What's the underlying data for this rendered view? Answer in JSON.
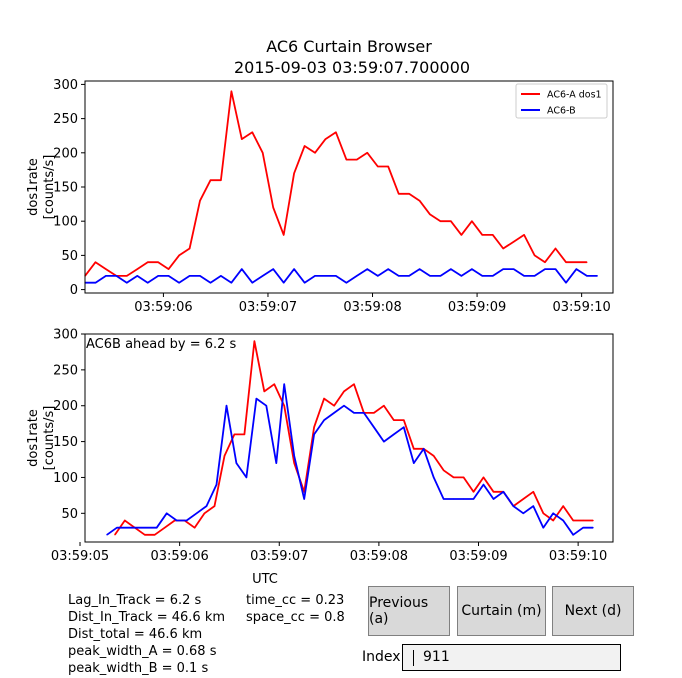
{
  "title": "AC6 Curtain Browser",
  "subtitle": "2015-09-03 03:59:07.700000",
  "colors": {
    "a": "#ff0000",
    "b": "#0000ff"
  },
  "chart_data": [
    {
      "type": "line",
      "ylabel": "dos1rate\n[counts/s]",
      "ylim": [
        -5,
        305
      ],
      "yticks": [
        0,
        50,
        100,
        150,
        200,
        250,
        300
      ],
      "xlim": [
        5.25,
        10.3
      ],
      "xticks": [
        6,
        7,
        8,
        9,
        10
      ],
      "xtick_labels": [
        "03:59:06",
        "03:59:07",
        "03:59:08",
        "03:59:09",
        "03:59:10"
      ],
      "legend": "top-right",
      "series": [
        {
          "name": "AC6-A dos1",
          "color": "#ff0000",
          "x": [
            5.25,
            5.35,
            5.45,
            5.55,
            5.65,
            5.75,
            5.85,
            5.95,
            6.05,
            6.15,
            6.25,
            6.35,
            6.45,
            6.55,
            6.65,
            6.75,
            6.85,
            6.95,
            7.05,
            7.15,
            7.25,
            7.35,
            7.45,
            7.55,
            7.65,
            7.75,
            7.85,
            7.95,
            8.05,
            8.15,
            8.25,
            8.35,
            8.45,
            8.55,
            8.65,
            8.75,
            8.85,
            8.95,
            9.05,
            9.15,
            9.25,
            9.35,
            9.45,
            9.55,
            9.65,
            9.75,
            9.85,
            9.95,
            10.05
          ],
          "y": [
            20,
            40,
            30,
            20,
            20,
            30,
            40,
            40,
            30,
            50,
            60,
            130,
            160,
            160,
            290,
            220,
            230,
            200,
            120,
            80,
            170,
            210,
            200,
            220,
            230,
            190,
            190,
            200,
            180,
            180,
            140,
            140,
            130,
            110,
            100,
            100,
            80,
            100,
            80,
            80,
            60,
            70,
            80,
            50,
            40,
            60,
            40,
            40,
            40
          ]
        },
        {
          "name": "AC6-B",
          "color": "#0000ff",
          "x": [
            5.25,
            5.35,
            5.45,
            5.55,
            5.65,
            5.75,
            5.85,
            5.95,
            6.05,
            6.15,
            6.25,
            6.35,
            6.45,
            6.55,
            6.65,
            6.75,
            6.85,
            6.95,
            7.05,
            7.15,
            7.25,
            7.35,
            7.45,
            7.55,
            7.65,
            7.75,
            7.85,
            7.95,
            8.05,
            8.15,
            8.25,
            8.35,
            8.45,
            8.55,
            8.65,
            8.75,
            8.85,
            8.95,
            9.05,
            9.15,
            9.25,
            9.35,
            9.45,
            9.55,
            9.65,
            9.75,
            9.85,
            9.95,
            10.05,
            10.15
          ],
          "y": [
            10,
            10,
            20,
            20,
            10,
            20,
            10,
            20,
            20,
            10,
            20,
            20,
            10,
            20,
            10,
            30,
            10,
            20,
            30,
            10,
            30,
            10,
            20,
            20,
            20,
            10,
            20,
            30,
            20,
            30,
            20,
            20,
            30,
            20,
            20,
            30,
            20,
            30,
            20,
            20,
            30,
            30,
            20,
            20,
            30,
            30,
            10,
            30,
            20,
            20
          ]
        }
      ]
    },
    {
      "type": "line",
      "ylabel": "dos1rate\n[counts/s]",
      "ylim": [
        10,
        300
      ],
      "yticks": [
        50,
        100,
        150,
        200,
        250,
        300
      ],
      "xlim": [
        5.05,
        10.35
      ],
      "xticks": [
        5,
        6,
        7,
        8,
        9,
        10
      ],
      "xtick_labels": [
        "03:59:05",
        "03:59:06",
        "03:59:07",
        "03:59:08",
        "03:59:09",
        "03:59:10"
      ],
      "xlabel": "UTC",
      "annotation": "AC6B ahead by = 6.2 s",
      "series": [
        {
          "color": "#ff0000",
          "x": [
            5.35,
            5.45,
            5.55,
            5.65,
            5.75,
            5.85,
            5.95,
            6.05,
            6.15,
            6.25,
            6.35,
            6.45,
            6.55,
            6.65,
            6.75,
            6.85,
            6.95,
            7.05,
            7.15,
            7.25,
            7.35,
            7.45,
            7.55,
            7.65,
            7.75,
            7.85,
            7.95,
            8.05,
            8.15,
            8.25,
            8.35,
            8.45,
            8.55,
            8.65,
            8.75,
            8.85,
            8.95,
            9.05,
            9.15,
            9.25,
            9.35,
            9.45,
            9.55,
            9.65,
            9.75,
            9.85,
            9.95,
            10.05,
            10.15
          ],
          "y": [
            20,
            40,
            30,
            20,
            20,
            30,
            40,
            40,
            30,
            50,
            60,
            130,
            160,
            160,
            290,
            220,
            230,
            200,
            120,
            80,
            170,
            210,
            200,
            220,
            230,
            190,
            190,
            200,
            180,
            180,
            140,
            140,
            130,
            110,
            100,
            100,
            80,
            100,
            80,
            80,
            60,
            70,
            80,
            50,
            40,
            60,
            40,
            40,
            40
          ]
        },
        {
          "color": "#0000ff",
          "x": [
            5.27,
            5.37,
            5.47,
            5.57,
            5.67,
            5.77,
            5.87,
            5.97,
            6.07,
            6.17,
            6.27,
            6.37,
            6.47,
            6.57,
            6.67,
            6.77,
            6.87,
            6.97,
            7.05,
            7.15,
            7.25,
            7.35,
            7.45,
            7.55,
            7.65,
            7.75,
            7.85,
            7.95,
            8.05,
            8.15,
            8.25,
            8.35,
            8.45,
            8.55,
            8.65,
            8.75,
            8.85,
            8.95,
            9.05,
            9.15,
            9.25,
            9.35,
            9.45,
            9.55,
            9.65,
            9.75,
            9.85,
            9.95,
            10.05,
            10.15
          ],
          "y": [
            20,
            30,
            30,
            30,
            30,
            30,
            50,
            40,
            40,
            50,
            60,
            90,
            200,
            120,
            100,
            210,
            200,
            120,
            230,
            130,
            70,
            160,
            180,
            190,
            200,
            190,
            190,
            170,
            150,
            160,
            170,
            120,
            140,
            100,
            70,
            70,
            70,
            70,
            90,
            70,
            80,
            60,
            50,
            60,
            30,
            50,
            40,
            20,
            30,
            30
          ]
        }
      ]
    }
  ],
  "stats_left": [
    "Lag_In_Track = 6.2 s",
    "Dist_In_Track = 46.6 km",
    "Dist_total = 46.6 km",
    "peak_width_A = 0.68 s",
    "peak_width_B = 0.1 s"
  ],
  "stats_right": [
    "time_cc = 0.23",
    "space_cc = 0.8"
  ],
  "buttons": {
    "previous": "Previous (a)",
    "curtain": "Curtain (m)",
    "next": "Next (d)"
  },
  "index": {
    "label": "Index",
    "value": "911"
  }
}
